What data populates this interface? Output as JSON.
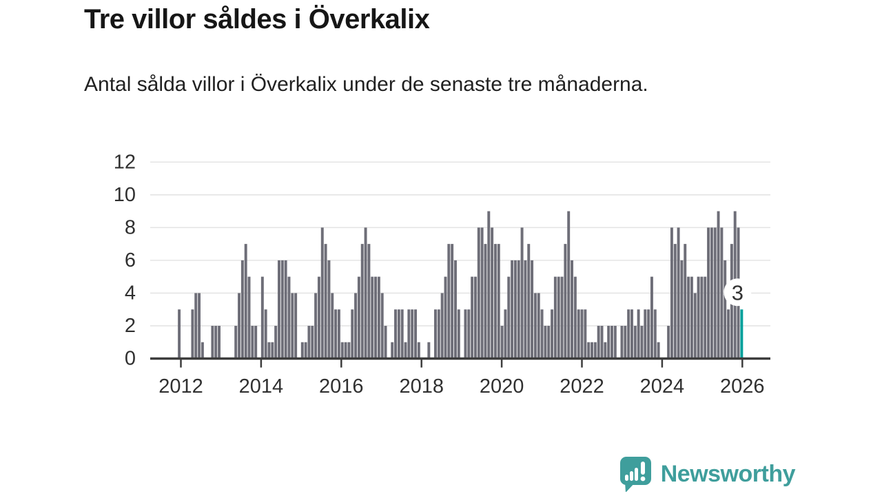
{
  "header": {
    "title": "Tre villor såldes i Överkalix",
    "subtitle": "Antal sålda villor i Överkalix under de senaste tre månaderna."
  },
  "chart_data": {
    "type": "bar",
    "title": "Tre villor såldes i Överkalix",
    "xlabel": "",
    "ylabel": "",
    "ylim": [
      0,
      12
    ],
    "y_ticks": [
      0,
      2,
      4,
      6,
      8,
      10,
      12
    ],
    "x_tick_years": [
      2012,
      2014,
      2016,
      2018,
      2020,
      2022,
      2024,
      2026
    ],
    "grid": true,
    "legend_position": "none",
    "frequency": "monthly",
    "start_month": "2011-12",
    "end_month": "2026-01",
    "values": [
      3,
      0,
      0,
      0,
      3,
      4,
      4,
      1,
      0,
      0,
      2,
      2,
      2,
      0,
      0,
      0,
      0,
      2,
      4,
      6,
      7,
      5,
      2,
      2,
      0,
      5,
      3,
      1,
      1,
      2,
      6,
      6,
      6,
      5,
      4,
      4,
      0,
      1,
      1,
      2,
      2,
      4,
      5,
      8,
      7,
      6,
      4,
      3,
      3,
      1,
      1,
      1,
      3,
      4,
      5,
      7,
      8,
      7,
      5,
      5,
      5,
      4,
      2,
      0,
      1,
      3,
      3,
      3,
      1,
      3,
      3,
      3,
      1,
      0,
      0,
      1,
      0,
      3,
      3,
      4,
      5,
      7,
      7,
      6,
      3,
      0,
      3,
      3,
      5,
      5,
      8,
      8,
      7,
      9,
      8,
      7,
      7,
      2,
      3,
      5,
      6,
      6,
      6,
      8,
      6,
      7,
      6,
      4,
      4,
      3,
      2,
      2,
      3,
      5,
      5,
      5,
      7,
      9,
      6,
      5,
      3,
      3,
      3,
      1,
      1,
      1,
      2,
      2,
      1,
      2,
      2,
      2,
      0,
      2,
      2,
      3,
      3,
      2,
      3,
      2,
      3,
      3,
      5,
      3,
      1,
      0,
      0,
      2,
      8,
      7,
      8,
      6,
      7,
      5,
      5,
      4,
      5,
      5,
      5,
      8,
      8,
      8,
      9,
      8,
      6,
      3,
      7,
      9,
      8,
      3
    ],
    "highlight": {
      "index": 169,
      "month": "2026-01",
      "value": 3,
      "label": "3"
    },
    "colors": {
      "bar": "#6e6e78",
      "highlight": "#00a09b",
      "grid": "#e4e4e4",
      "axis": "#3d3d3d",
      "label": "#303030",
      "annotation_text": "#333333",
      "annotation_halo": "#ffffff"
    }
  },
  "logo": {
    "text": "Newsworthy",
    "color": "#3f9e9c"
  }
}
